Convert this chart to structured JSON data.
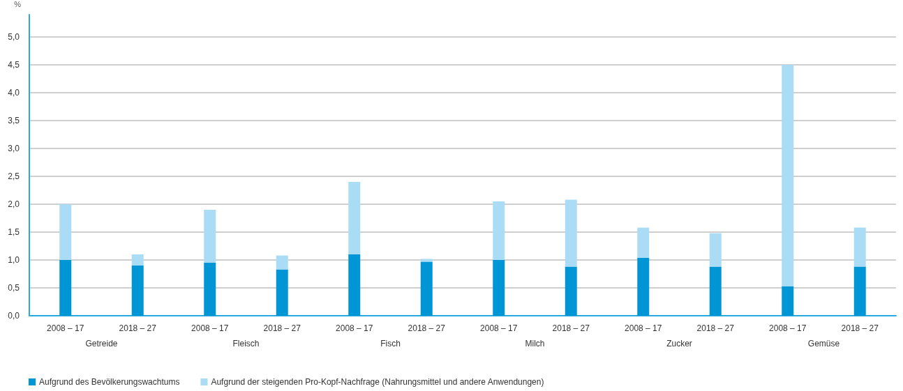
{
  "chart_data": {
    "type": "bar",
    "stacked": true,
    "ylabel": "%",
    "categories": [
      "2008 – 17",
      "2018 – 27",
      "2008 – 17",
      "2018 – 27",
      "2008 – 17",
      "2018 – 27",
      "2008 – 17",
      "2018 – 27",
      "2008 – 17",
      "2018 – 27",
      "2008 – 17",
      "2018 – 27"
    ],
    "annotations": [
      "Getreide",
      "Fleisch",
      "Fisch",
      "Milch",
      "Zucker",
      "Gemüse"
    ],
    "series": [
      {
        "name": "Aufgrund des Bevölkerungswachtums",
        "color": "#0096d6",
        "values": [
          1.0,
          0.9,
          0.95,
          0.83,
          1.1,
          0.97,
          1.0,
          0.88,
          1.04,
          0.88,
          0.53,
          0.88
        ]
      },
      {
        "name": "Aufgrund der steigenden Pro-Kopf-Nachfrage (Nahrungsmittel und andere Anwendungen)",
        "color": "#aadcf5",
        "values": [
          1.0,
          0.2,
          0.95,
          0.25,
          1.3,
          0.05,
          1.05,
          1.2,
          0.54,
          0.6,
          3.97,
          0.7
        ]
      }
    ],
    "ylim": [
      0,
      5.4
    ],
    "yticks": [
      {
        "value": 0,
        "label": "0,0"
      },
      {
        "value": 0.5,
        "label": "0,5"
      },
      {
        "value": 1,
        "label": "1,0"
      },
      {
        "value": 1.5,
        "label": "1,5"
      },
      {
        "value": 2,
        "label": "2,0"
      },
      {
        "value": 2.5,
        "label": "2,5"
      },
      {
        "value": 3,
        "label": "3,0"
      },
      {
        "value": 3.5,
        "label": "3,5"
      },
      {
        "value": 4,
        "label": "4,0"
      },
      {
        "value": 4.5,
        "label": "4,5"
      },
      {
        "value": 5,
        "label": "5,0"
      }
    ],
    "grid": "y",
    "legend": "bottom left"
  }
}
